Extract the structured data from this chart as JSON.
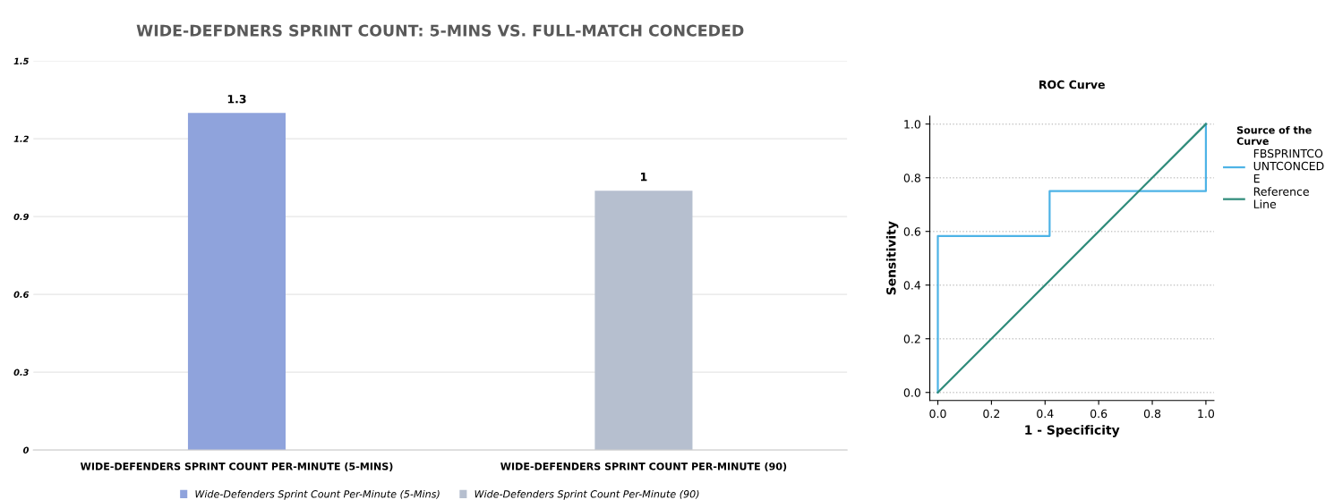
{
  "chart_data": [
    {
      "type": "bar",
      "title": "WIDE-DEFDNERS SPRINT COUNT: 5-MINS VS. FULL-MATCH CONCEDED",
      "categories": [
        "WIDE-DEFENDERS SPRINT COUNT PER-MINUTE (5-MINS)",
        "WIDE-DEFENDERS SPRINT COUNT PER-MINUTE (90)"
      ],
      "series": [
        {
          "name": "Wide-Defenders Sprint Count Per-Minute (5-Mins)",
          "color": "#8fa3dc",
          "values": [
            1.3,
            null
          ]
        },
        {
          "name": "Wide-Defenders Sprint Count Per-Minute (90)",
          "color": "#b6bfcf",
          "values": [
            null,
            1
          ]
        }
      ],
      "ylim": [
        0,
        1.5
      ],
      "yticks": [
        0,
        0.3,
        0.6,
        0.9,
        1.2,
        1.5
      ],
      "data_labels": true,
      "grid": "y",
      "legend": "bottom"
    },
    {
      "type": "line",
      "title": "ROC Curve",
      "xlabel": "1 - Specificity",
      "ylabel": "Sensitivity",
      "legend_title": "Source of the\nCurve",
      "series": [
        {
          "name": "FBSPRINTCO\nUNTCONCED\nE",
          "color": "#4db3e6",
          "x": [
            0,
            0,
            0.417,
            0.417,
            1,
            1
          ],
          "values": [
            0,
            0.583,
            0.583,
            0.75,
            0.75,
            1
          ]
        },
        {
          "name": "Reference\nLine",
          "color": "#2e8b7a",
          "x": [
            0,
            1
          ],
          "values": [
            0,
            1
          ]
        }
      ],
      "xlim": [
        -0.03,
        1.03
      ],
      "ylim": [
        -0.03,
        1.03
      ],
      "xticks": [
        {
          "value": 0,
          "label": "0.0"
        },
        0.2,
        0.4,
        0.6,
        0.8,
        {
          "value": 1,
          "label": "1.0"
        }
      ],
      "yticks": [
        {
          "value": 0,
          "label": "0.0"
        },
        0.2,
        0.4,
        0.6,
        0.8,
        {
          "value": 1,
          "label": "1.0"
        }
      ],
      "grid": "y",
      "legend": "right",
      "line_style": "solid",
      "marker": "none"
    }
  ]
}
